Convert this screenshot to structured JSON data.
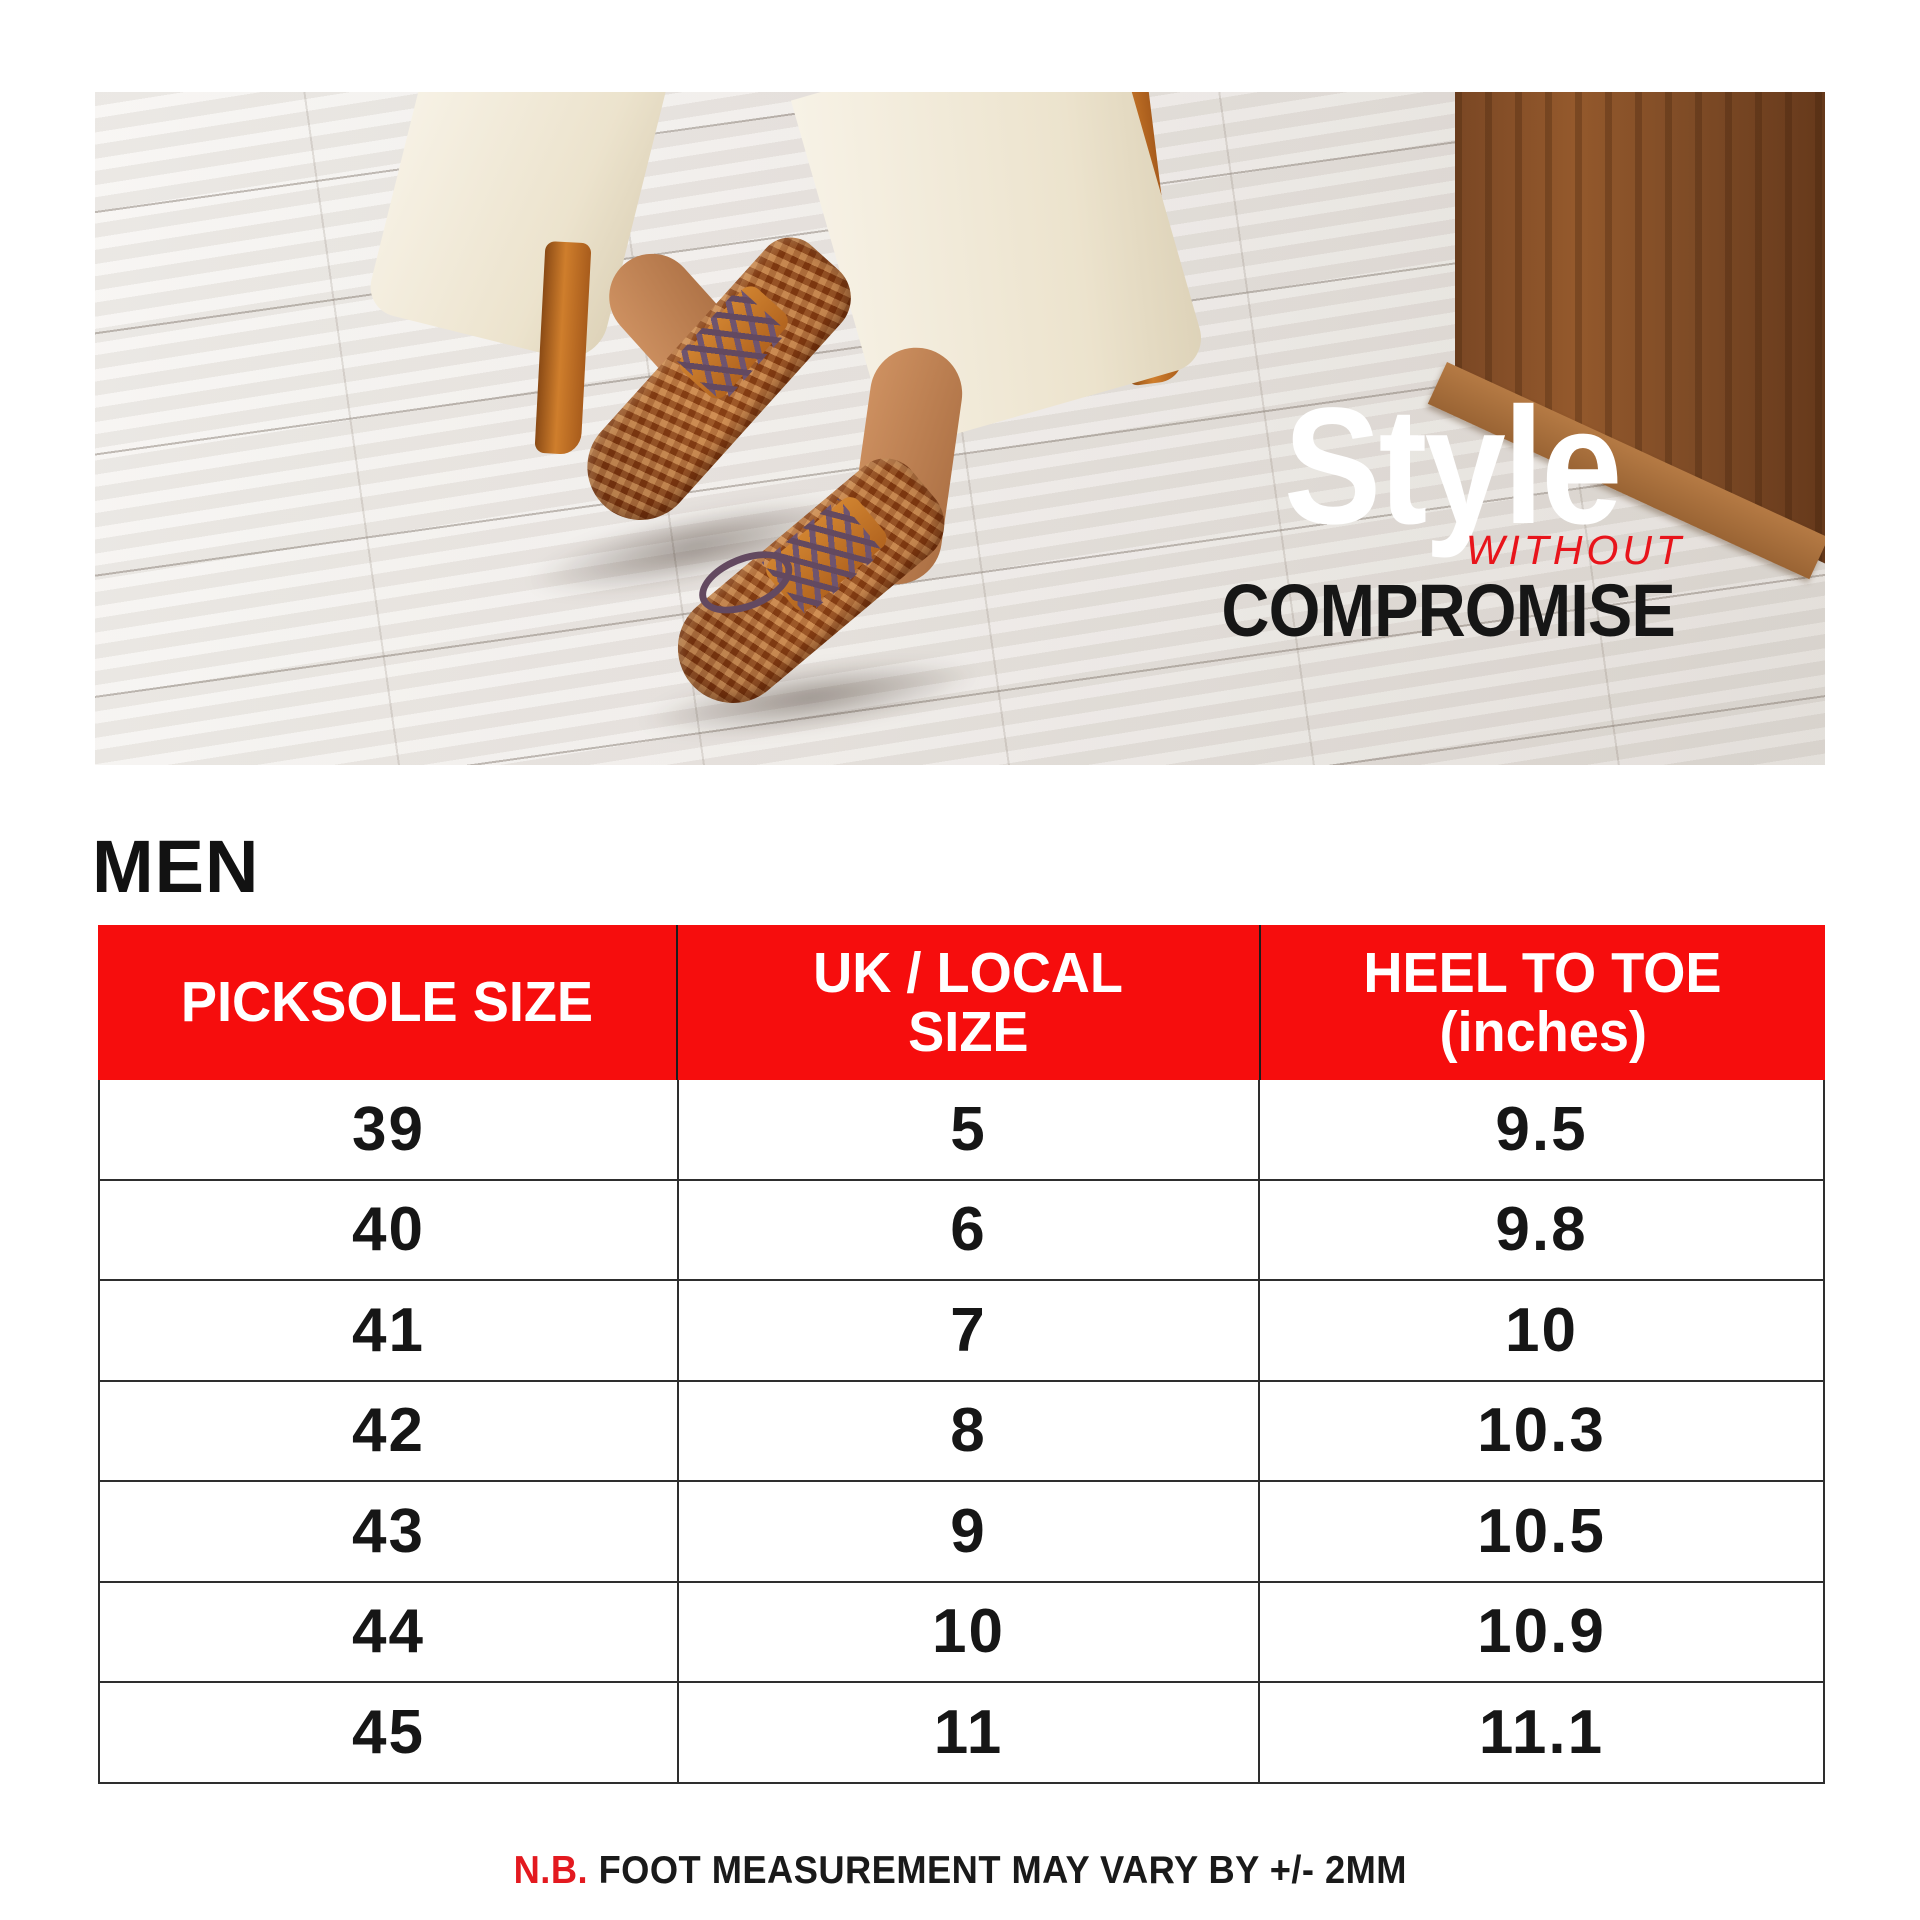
{
  "hero": {
    "overlay": {
      "style_word": "Style",
      "without_word": "WITHOUT",
      "compromise_word": "COMPROMISE"
    }
  },
  "section": {
    "title": "MEN"
  },
  "table": {
    "headers": [
      {
        "lines": [
          "PICKSOLE SIZE",
          ""
        ]
      },
      {
        "lines": [
          "UK / LOCAL",
          "SIZE"
        ]
      },
      {
        "lines": [
          "HEEL TO TOE",
          "(inches)"
        ]
      }
    ],
    "rows": [
      [
        "39",
        "5",
        "9.5"
      ],
      [
        "40",
        "6",
        "9.8"
      ],
      [
        "41",
        "7",
        "10"
      ],
      [
        "42",
        "8",
        "10.3"
      ],
      [
        "43",
        "9",
        "10.5"
      ],
      [
        "44",
        "10",
        "10.9"
      ],
      [
        "45",
        "11",
        "11.1"
      ]
    ]
  },
  "footer": {
    "nb_label": "N.B.",
    "note": " FOOT MEASUREMENT MAY VARY BY +/- 2MM"
  },
  "colors": {
    "accent_red": "#F60D0D",
    "without_red": "#E8141B",
    "note_red": "#E3191F",
    "text_black": "#161616",
    "grid_line": "#2E2E2E",
    "background": "#FFFFFF"
  }
}
